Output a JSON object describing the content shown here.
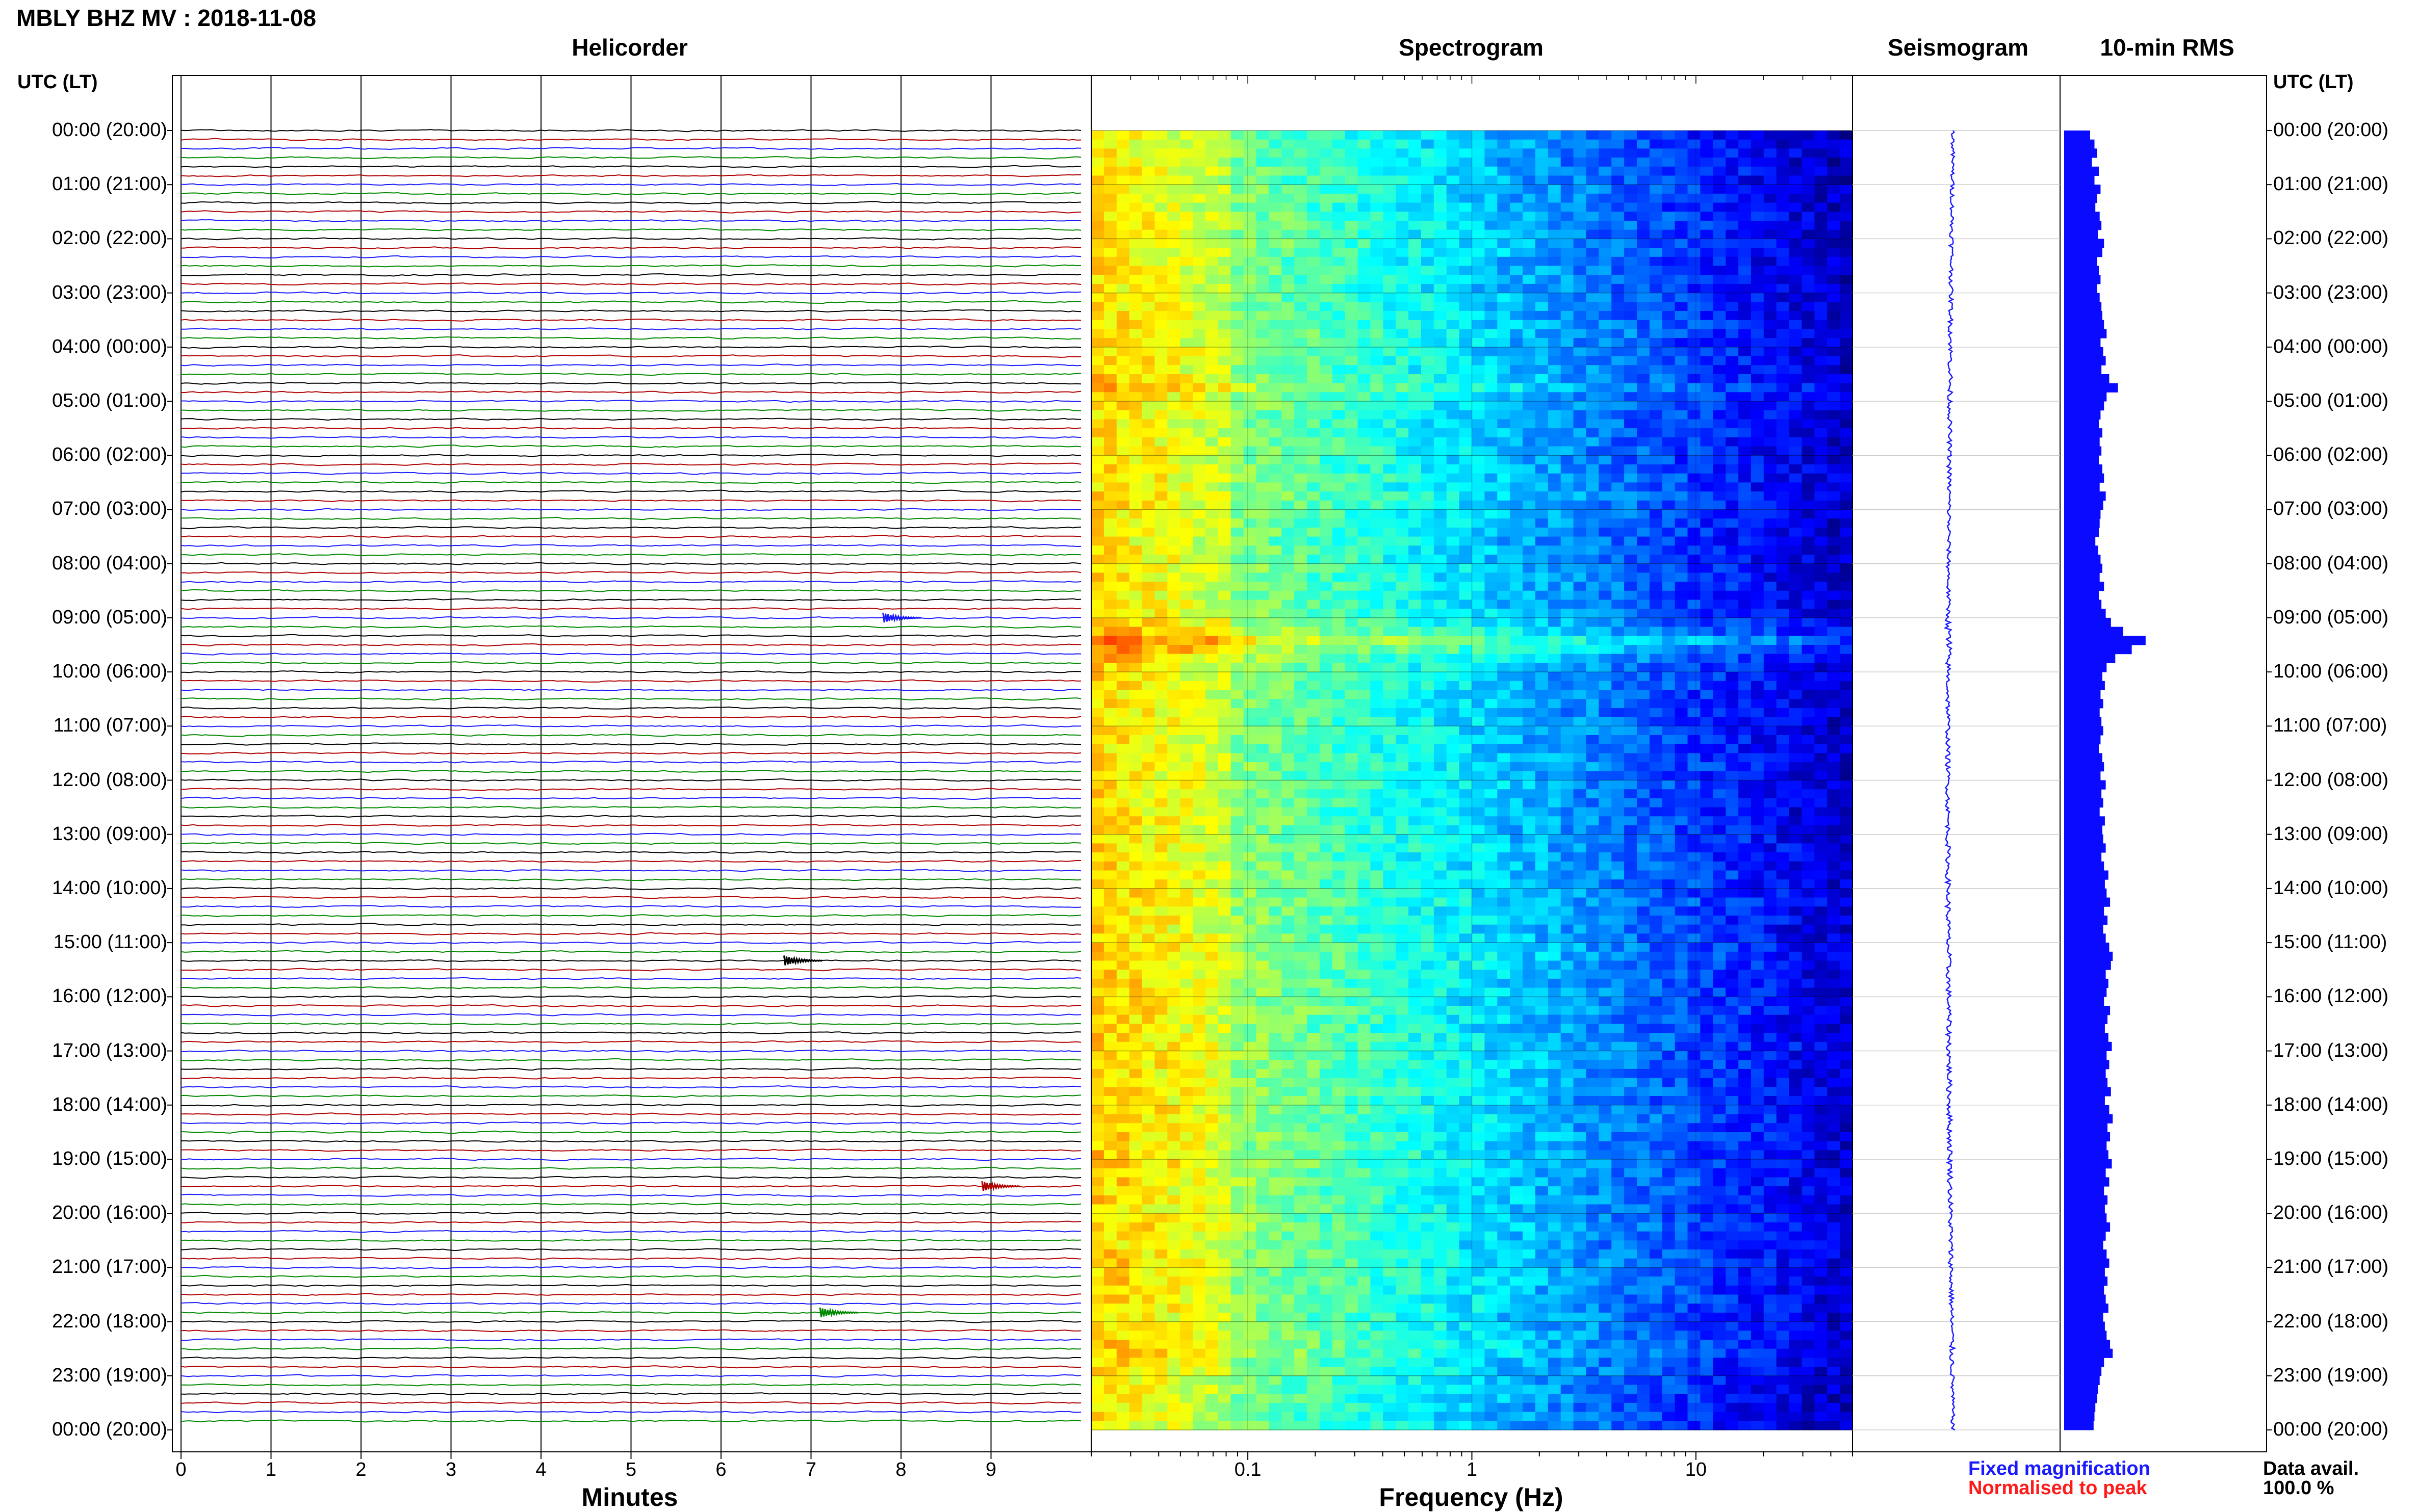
{
  "header": {
    "title": "MBLY BHZ MV : 2018-11-08"
  },
  "panels": {
    "helicorder": "Helicorder",
    "spectrogram": "Spectrogram",
    "seismogram": "Seismogram",
    "rms": "10-min RMS"
  },
  "axis": {
    "utc_lt_left": "UTC (LT)",
    "utc_lt_right": "UTC (LT)",
    "minutes_label": "Minutes",
    "frequency_label": "Frequency (Hz)"
  },
  "legend": {
    "fixed": "Fixed magnification",
    "normalised": "Normalised to peak"
  },
  "availability": {
    "label": "Data avail.",
    "value": "100.0 %"
  },
  "colors": {
    "trace_cycle": [
      "#000000",
      "#b00000",
      "#1a1aff",
      "#008800"
    ],
    "rms_bar": "#0a0aff",
    "seismogram": "#1a1aff"
  },
  "chart_data": {
    "type": "helicorder",
    "time_labels": [
      "00:00 (20:00)",
      "01:00 (21:00)",
      "02:00 (22:00)",
      "03:00 (23:00)",
      "04:00 (00:00)",
      "05:00 (01:00)",
      "06:00 (02:00)",
      "07:00 (03:00)",
      "08:00 (04:00)",
      "09:00 (05:00)",
      "10:00 (06:00)",
      "11:00 (07:00)",
      "12:00 (08:00)",
      "13:00 (09:00)",
      "14:00 (10:00)",
      "15:00 (11:00)",
      "16:00 (12:00)",
      "17:00 (13:00)",
      "18:00 (14:00)",
      "19:00 (15:00)",
      "20:00 (16:00)",
      "21:00 (17:00)",
      "22:00 (18:00)",
      "23:00 (19:00)",
      "00:00 (20:00)"
    ],
    "minute_ticks": [
      "0",
      "1",
      "2",
      "3",
      "4",
      "5",
      "6",
      "7",
      "8",
      "9"
    ],
    "frequency_ticks": [
      "0.1",
      "1",
      "10"
    ],
    "frequency_range_hz": [
      0.02,
      50
    ],
    "trace_rows": 144,
    "minutes_per_row": 10,
    "rms_values": [
      3,
      3.5,
      3.8,
      3.2,
      4,
      3.5,
      4.2,
      3.8,
      3.6,
      4.1,
      4.3,
      3.9,
      4.6,
      4.4,
      3.8,
      4.0,
      4.2,
      3.8,
      4.1,
      4.3,
      4.4,
      4.6,
      4.9,
      4.2,
      4.5,
      4.8,
      4.3,
      5.2,
      6.2,
      4.9,
      4.6,
      4.2,
      4.0,
      4.4,
      4.1,
      4.3,
      4.0,
      4.4,
      4.6,
      4.1,
      4.8,
      4.5,
      4.2,
      4.1,
      4.0,
      3.6,
      3.9,
      4.2,
      4.4,
      4.1,
      4.6,
      4.0,
      4.3,
      4.8,
      5.4,
      6.8,
      9.4,
      7.8,
      5.9,
      4.9,
      4.4,
      4.7,
      4.2,
      4.5,
      4.1,
      4.3,
      4.5,
      4.2,
      4.0,
      4.4,
      4.6,
      4.2,
      4.8,
      4.3,
      4.5,
      4.1,
      4.7,
      4.4,
      4.5,
      4.8,
      4.3,
      4.6,
      5.1,
      4.7,
      4.9,
      5.3,
      4.6,
      5.0,
      4.5,
      4.8,
      5.2,
      5.6,
      5.4,
      4.8,
      5.1,
      4.9,
      4.6,
      5.3,
      5.0,
      4.7,
      5.1,
      5.5,
      4.9,
      5.2,
      4.8,
      5.0,
      5.4,
      4.7,
      5.2,
      5.6,
      5.0,
      5.3,
      4.9,
      5.1,
      5.5,
      4.8,
      5.2,
      4.6,
      5.0,
      4.7,
      4.9,
      5.3,
      4.8,
      4.5,
      4.9,
      5.2,
      4.7,
      5.0,
      4.6,
      4.8,
      5.1,
      4.5,
      4.7,
      4.9,
      5.3,
      5.6,
      4.6,
      4.3,
      4.1,
      3.9,
      3.8,
      3.6,
      3.5,
      3.4
    ],
    "events": [
      {
        "row": 54,
        "minute": 7.8,
        "label": ""
      },
      {
        "row": 92,
        "minute": 6.7,
        "label": ""
      },
      {
        "row": 117,
        "minute": 8.9,
        "label": ""
      },
      {
        "row": 131,
        "minute": 7.1,
        "label": ""
      }
    ]
  }
}
